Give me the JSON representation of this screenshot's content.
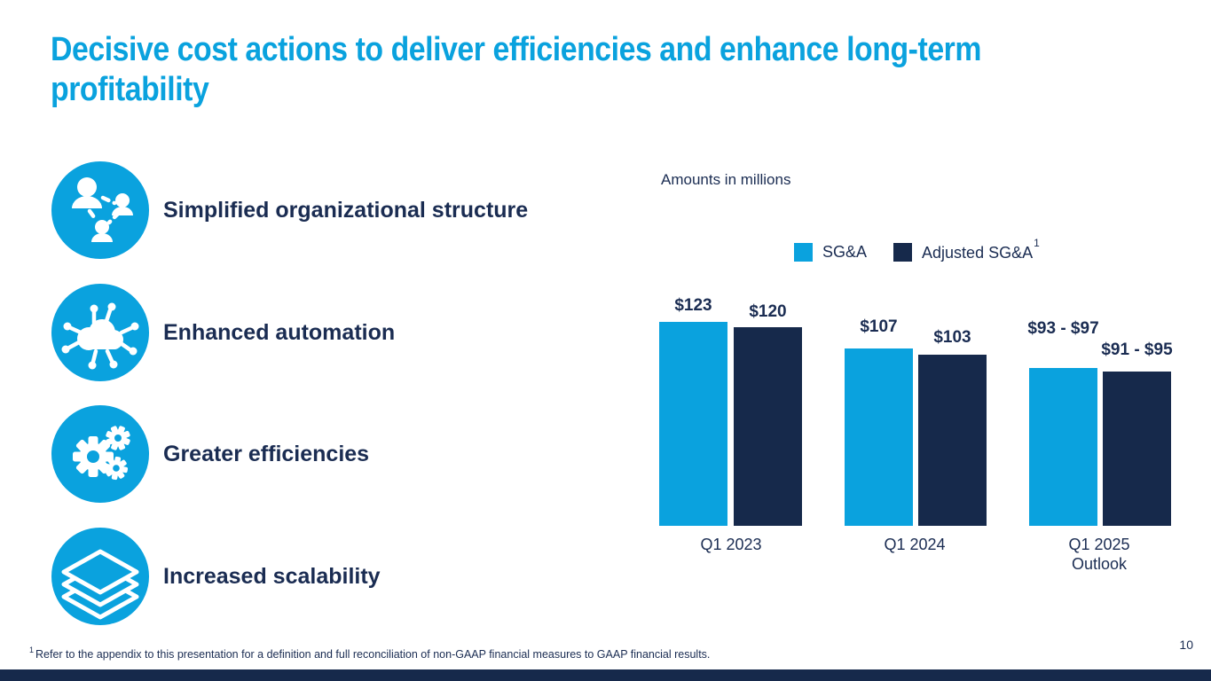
{
  "slide": {
    "title_lines": [
      "Decisive cost actions to deliver efficiencies and enhance long-term",
      "profitability"
    ],
    "page_number": "10",
    "footnote": {
      "sup": "1",
      "text": "Refer to the appendix to this presentation for a definition and full reconciliation of non-GAAP financial measures to GAAP financial results."
    }
  },
  "colors": {
    "accent_blue": "#0aa2de",
    "navy": "#16294b",
    "text_navy": "#1a2c52",
    "title_blue": "#0aa2de"
  },
  "bullets": [
    {
      "icon": "network-people-icon",
      "label": "Simplified organizational structure"
    },
    {
      "icon": "cloud-automation-icon",
      "label": "Enhanced automation"
    },
    {
      "icon": "gears-icon",
      "label": "Greater efficiencies"
    },
    {
      "icon": "layers-icon",
      "label": "Increased scalability"
    }
  ],
  "chart_data": {
    "type": "bar",
    "units_label": "Amounts in millions",
    "legend": [
      {
        "name": "SG&A",
        "sup": "",
        "color": "#0aa2de"
      },
      {
        "name": "Adjusted SG&A",
        "sup": "1",
        "color": "#16294b"
      }
    ],
    "categories": [
      "Q1 2023",
      "Q1 2024",
      "Q1 2025\nOutlook"
    ],
    "series": [
      {
        "name": "SG&A",
        "values": [
          123,
          107,
          95
        ],
        "labels": [
          "$123",
          "$107",
          "$93 - $97"
        ]
      },
      {
        "name": "Adjusted SG&A",
        "values": [
          120,
          103,
          93
        ],
        "labels": [
          "$120",
          "$103",
          "$91 - $95"
        ]
      }
    ],
    "ylim": [
      0,
      130
    ],
    "grid": false,
    "legend_position": "top",
    "notes": "Q1 2025 Outlook values are ranges; midpoints used for bar heights"
  }
}
